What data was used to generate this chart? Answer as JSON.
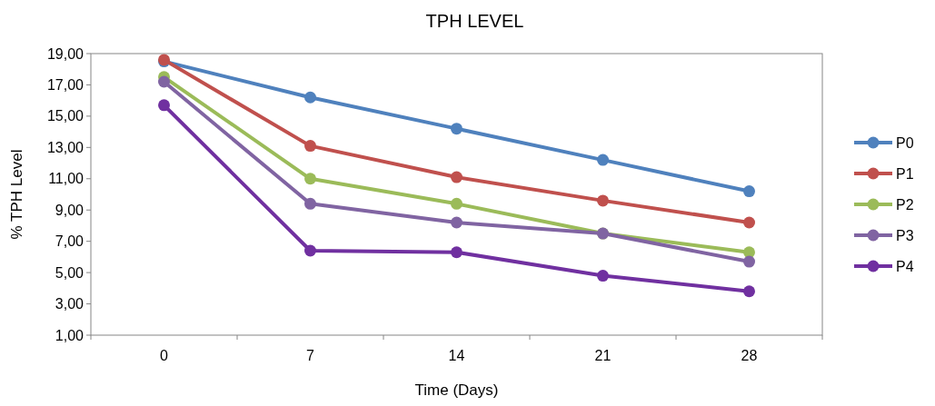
{
  "chart_data": {
    "type": "line",
    "title": "TPH LEVEL",
    "xlabel": "Time (Days)",
    "ylabel": "% TPH Level",
    "categories": [
      "0",
      "7",
      "14",
      "21",
      "28"
    ],
    "series": [
      {
        "name": "P0",
        "color": "#4f81bd",
        "values": [
          18.5,
          16.2,
          14.2,
          12.2,
          10.2
        ]
      },
      {
        "name": "P1",
        "color": "#c0504d",
        "values": [
          18.6,
          13.1,
          11.1,
          9.6,
          8.2
        ]
      },
      {
        "name": "P2",
        "color": "#9bbb59",
        "values": [
          17.5,
          11.0,
          9.4,
          7.5,
          6.3
        ]
      },
      {
        "name": "P3",
        "color": "#8064a2",
        "values": [
          17.2,
          9.4,
          8.2,
          7.5,
          5.7
        ]
      },
      {
        "name": "P4",
        "color": "#7030a0",
        "values": [
          15.7,
          6.4,
          6.3,
          4.8,
          3.8
        ]
      }
    ],
    "ylim": [
      1,
      19
    ],
    "yticks": [
      {
        "value": 1,
        "label": "1,00"
      },
      {
        "value": 3,
        "label": "3,00"
      },
      {
        "value": 5,
        "label": "5,00"
      },
      {
        "value": 7,
        "label": "7,00"
      },
      {
        "value": 9,
        "label": "9,00"
      },
      {
        "value": 11,
        "label": "11,00"
      },
      {
        "value": 13,
        "label": "13,00"
      },
      {
        "value": 15,
        "label": "15,00"
      },
      {
        "value": 17,
        "label": "17,00"
      },
      {
        "value": 19,
        "label": "19,00"
      }
    ],
    "marker": "circle",
    "line_style": "solid",
    "legend": "right",
    "grid": false
  }
}
